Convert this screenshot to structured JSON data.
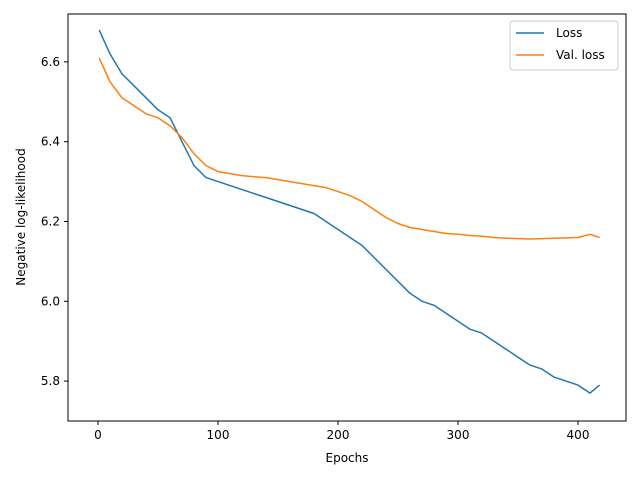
{
  "chart_data": {
    "type": "line",
    "title": "",
    "xlabel": "Epochs",
    "ylabel": "Negative log-likelihood",
    "xlim": [
      -25,
      440
    ],
    "ylim": [
      5.7,
      6.72
    ],
    "xticks": [
      0,
      100,
      200,
      300,
      400
    ],
    "yticks": [
      5.8,
      6.0,
      6.2,
      6.4,
      6.6
    ],
    "xtick_labels": [
      "0",
      "100",
      "200",
      "300",
      "400"
    ],
    "ytick_labels": [
      "5.8",
      "6.0",
      "6.2",
      "6.4",
      "6.6"
    ],
    "grid": false,
    "legend_position": "top-right",
    "x": [
      1,
      10,
      20,
      30,
      40,
      50,
      60,
      70,
      80,
      90,
      100,
      110,
      120,
      130,
      140,
      150,
      160,
      170,
      180,
      190,
      200,
      210,
      220,
      230,
      240,
      250,
      260,
      270,
      280,
      290,
      300,
      310,
      320,
      330,
      340,
      350,
      360,
      370,
      380,
      390,
      400,
      410,
      418
    ],
    "series": [
      {
        "name": "Loss",
        "color": "#1f77b4",
        "values": [
          6.68,
          6.62,
          6.57,
          6.54,
          6.51,
          6.48,
          6.46,
          6.4,
          6.34,
          6.31,
          6.3,
          6.29,
          6.28,
          6.27,
          6.26,
          6.25,
          6.24,
          6.23,
          6.22,
          6.2,
          6.18,
          6.16,
          6.14,
          6.11,
          6.08,
          6.05,
          6.02,
          6.0,
          5.99,
          5.97,
          5.95,
          5.93,
          5.92,
          5.9,
          5.88,
          5.86,
          5.84,
          5.83,
          5.81,
          5.8,
          5.79,
          5.77,
          5.79
        ]
      },
      {
        "name": "Val. loss",
        "color": "#ff7f0e",
        "values": [
          6.61,
          6.55,
          6.51,
          6.49,
          6.47,
          6.46,
          6.44,
          6.41,
          6.37,
          6.34,
          6.325,
          6.32,
          6.315,
          6.312,
          6.31,
          6.305,
          6.3,
          6.295,
          6.29,
          6.285,
          6.275,
          6.265,
          6.25,
          6.23,
          6.21,
          6.195,
          6.185,
          6.18,
          6.175,
          6.17,
          6.168,
          6.165,
          6.163,
          6.16,
          6.158,
          6.157,
          6.156,
          6.157,
          6.158,
          6.159,
          6.16,
          6.168,
          6.16
        ]
      }
    ]
  }
}
